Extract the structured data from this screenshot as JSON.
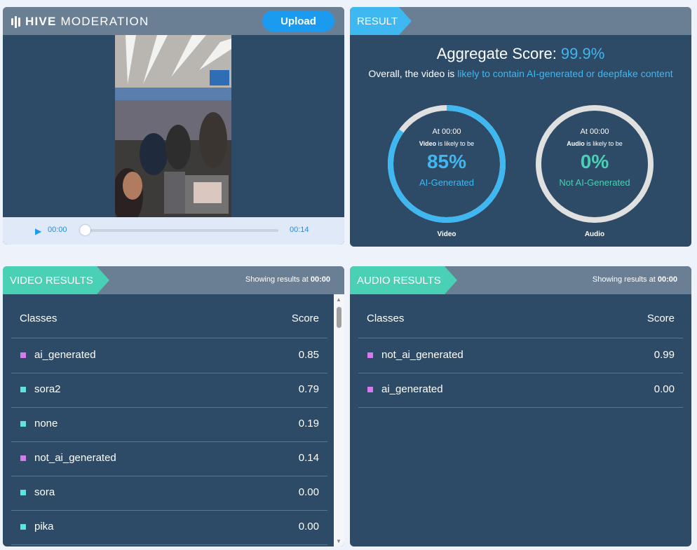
{
  "brand": {
    "bold": "HIVE",
    "rest": "MODERATION"
  },
  "upload_label": "Upload",
  "player": {
    "current_time": "00:00",
    "end_time": "00:14",
    "progress": 0
  },
  "result": {
    "tag": "RESULT",
    "aggregate_label": "Aggregate Score:",
    "aggregate_value": "99.9%",
    "overall_prefix": "Overall, the video is",
    "overall_highlight": "likely to contain AI-generated or deepfake content",
    "gauges": [
      {
        "at": "At 00:00",
        "media": "Video",
        "likely": "is likely to be",
        "percent": "85%",
        "fraction": 0.85,
        "verdict": "AI-Generated",
        "caption": "Video",
        "color": "#3fb8f1",
        "text_color": "#3fb8f1"
      },
      {
        "at": "At 00:00",
        "media": "Audio",
        "likely": "is likely to be",
        "percent": "0%",
        "fraction": 0,
        "verdict": "Not AI-Generated",
        "caption": "Audio",
        "color": "#3fb8f1",
        "text_color": "#49d0b5"
      }
    ]
  },
  "video_results": {
    "tag": "VIDEO RESULTS",
    "showing_prefix": "Showing results at",
    "showing_time": "00:00",
    "headers": {
      "classes": "Classes",
      "score": "Score"
    },
    "rows": [
      {
        "name": "ai_generated",
        "score": "0.85",
        "color": "#d67af0"
      },
      {
        "name": "sora2",
        "score": "0.79",
        "color": "#5ee3e0"
      },
      {
        "name": "none",
        "score": "0.19",
        "color": "#5ee3e0"
      },
      {
        "name": "not_ai_generated",
        "score": "0.14",
        "color": "#d67af0"
      },
      {
        "name": "sora",
        "score": "0.00",
        "color": "#5ee3e0"
      },
      {
        "name": "pika",
        "score": "0.00",
        "color": "#5ee3e0"
      }
    ]
  },
  "audio_results": {
    "tag": "AUDIO RESULTS",
    "showing_prefix": "Showing results at",
    "showing_time": "00:00",
    "headers": {
      "classes": "Classes",
      "score": "Score"
    },
    "rows": [
      {
        "name": "not_ai_generated",
        "score": "0.99",
        "color": "#d67af0"
      },
      {
        "name": "ai_generated",
        "score": "0.00",
        "color": "#d67af0"
      }
    ]
  }
}
